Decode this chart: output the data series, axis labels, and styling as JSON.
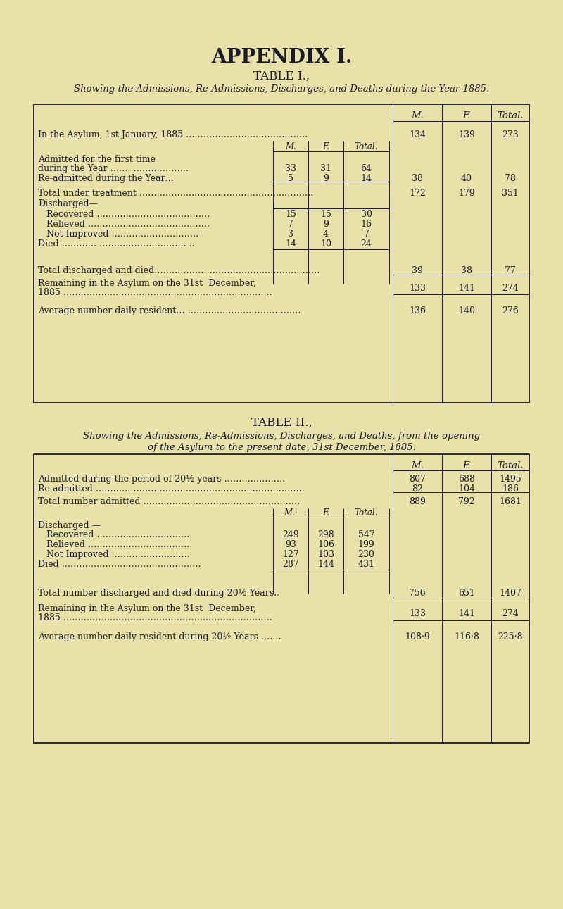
{
  "page_bg": "#e8e2a8",
  "text_color": "#1a1a2a",
  "title_main": "APPENDIX I.",
  "title_t1": "TABLE I.,",
  "subtitle_t1": "Showing the Admissions, Re-Admissions, Discharges, and Deaths during the Year 1885.",
  "title_t2": "TABLE II.,",
  "subtitle_t2_line1": "Showing the Admissions, Re-Admissions, Discharges, and Deaths, from the opening",
  "subtitle_t2_line2": "of the Asylum to the present date, 31st December, 1885."
}
